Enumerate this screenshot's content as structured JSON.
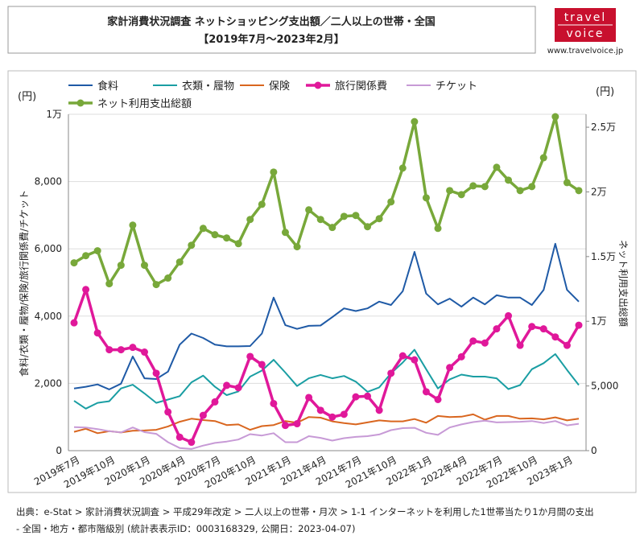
{
  "chart_data": {
    "type": "line",
    "title": "家計消費状況調査 ネットショッピング支出額／二人以上の世帯・全国",
    "subtitle": "【2019年7月～2023年2月】",
    "y_unit": "(円)",
    "y2_unit": "(円)",
    "y_label": "食料/衣類・履物/保険/旅行関係費/チケット",
    "y2_label": "ネット利用支出総額",
    "categories": [
      "2019年7月",
      null,
      null,
      "2019年10月",
      null,
      null,
      "2020年1月",
      null,
      null,
      "2020年4月",
      null,
      null,
      "2020年7月",
      null,
      null,
      "2020年10月",
      null,
      null,
      "2021年1月",
      null,
      null,
      "2021年4月",
      null,
      null,
      "2021年7月",
      null,
      null,
      "2021年10月",
      null,
      null,
      "2022年1月",
      null,
      null,
      "2022年4月",
      null,
      null,
      "2022年7月",
      null,
      null,
      "2022年10月",
      null,
      null,
      "2023年1月",
      null
    ],
    "ylim": [
      0,
      10000
    ],
    "yticks": [
      0,
      {
        "value": 2000,
        "label": "2,000"
      },
      {
        "value": 4000,
        "label": "4,000"
      },
      {
        "value": 6000,
        "label": "6,000"
      },
      {
        "value": 8000,
        "label": "8,000"
      },
      {
        "value": 10000,
        "label": "1万"
      }
    ],
    "y2lim": [
      0,
      26000
    ],
    "y2ticks": [
      0,
      {
        "value": 5000,
        "label": "5,000"
      },
      {
        "value": 10000,
        "label": "1万"
      },
      {
        "value": 15000,
        "label": "1.5万"
      },
      {
        "value": 20000,
        "label": "2万"
      },
      {
        "value": 25000,
        "label": "2.5万"
      }
    ],
    "grid": true,
    "series": [
      {
        "name": "食料",
        "color": "#1f5aa6",
        "markers": false,
        "values": [
          1850,
          1900,
          1970,
          1820,
          1990,
          2800,
          2150,
          2130,
          2350,
          3150,
          3480,
          3350,
          3150,
          3100,
          3100,
          3110,
          3480,
          4550,
          3730,
          3620,
          3710,
          3720,
          3970,
          4230,
          4150,
          4230,
          4430,
          4330,
          4740,
          5910,
          4670,
          4350,
          4520,
          4280,
          4550,
          4350,
          4620,
          4550,
          4550,
          4330,
          4780,
          6150,
          4780,
          4430
        ]
      },
      {
        "name": "衣類・履物",
        "color": "#1a9ea3",
        "markers": false,
        "values": [
          1480,
          1250,
          1420,
          1470,
          1850,
          1960,
          1700,
          1420,
          1520,
          1620,
          2030,
          2230,
          1900,
          1650,
          1760,
          2200,
          2380,
          2700,
          2320,
          1920,
          2150,
          2250,
          2150,
          2220,
          2050,
          1750,
          1880,
          2300,
          2620,
          3000,
          2420,
          1850,
          2120,
          2260,
          2200,
          2200,
          2150,
          1830,
          1950,
          2420,
          2600,
          2870,
          2400,
          1950
        ]
      },
      {
        "name": "保険",
        "color": "#d9661f",
        "markers": false,
        "values": [
          560,
          650,
          520,
          580,
          540,
          590,
          600,
          620,
          720,
          860,
          950,
          910,
          880,
          760,
          780,
          620,
          730,
          760,
          880,
          830,
          1000,
          980,
          870,
          820,
          780,
          840,
          900,
          870,
          870,
          940,
          830,
          1030,
          1000,
          1010,
          1080,
          920,
          1030,
          1030,
          950,
          960,
          930,
          990,
          900,
          950
        ]
      },
      {
        "name": "旅行関係費",
        "color": "#e0189a",
        "markers": true,
        "values": [
          3800,
          4790,
          3500,
          3000,
          3000,
          3070,
          2930,
          2300,
          1150,
          400,
          250,
          1050,
          1450,
          1940,
          1870,
          2800,
          2560,
          1400,
          750,
          800,
          1580,
          1200,
          1000,
          1080,
          1600,
          1620,
          1200,
          2300,
          2820,
          2700,
          1750,
          1520,
          2470,
          2790,
          3260,
          3200,
          3620,
          4010,
          3130,
          3690,
          3620,
          3380,
          3130,
          3730
        ]
      },
      {
        "name": "チケット",
        "color": "#c79ad6",
        "markers": false,
        "values": [
          700,
          690,
          640,
          580,
          540,
          690,
          550,
          500,
          250,
          80,
          50,
          150,
          230,
          270,
          330,
          490,
          450,
          520,
          250,
          250,
          430,
          380,
          300,
          370,
          410,
          430,
          480,
          610,
          670,
          680,
          530,
          470,
          690,
          780,
          850,
          890,
          840,
          850,
          860,
          880,
          820,
          880,
          750,
          800
        ]
      },
      {
        "name": "ネット利用支出総額",
        "color": "#78a83a",
        "markers": true,
        "axis": "y2",
        "values": [
          14520,
          15070,
          15450,
          12900,
          14330,
          17430,
          14330,
          12840,
          13340,
          14580,
          15880,
          17180,
          16690,
          16440,
          16000,
          17870,
          19040,
          21530,
          16870,
          15760,
          18610,
          17870,
          17250,
          18110,
          18180,
          17310,
          17930,
          19230,
          21840,
          25430,
          19540,
          17180,
          20100,
          19790,
          20470,
          20410,
          21900,
          20910,
          20100,
          20410,
          22640,
          25810,
          20720,
          20100
        ]
      }
    ]
  },
  "logo": {
    "top": "travel",
    "bottom": "voice",
    "url": "www.travelvoice.jp"
  },
  "source": [
    "出典：e-Stat > 家計消費状況調査 > 平成29年改定 > 二人以上の世帯・月次 > 1-1 インターネットを利用した1世帯当たり1か月間の支出",
    "- 全国・地方・都市階級別 (統計表表示ID：0003168329, 公開日：2023-04-07)"
  ]
}
